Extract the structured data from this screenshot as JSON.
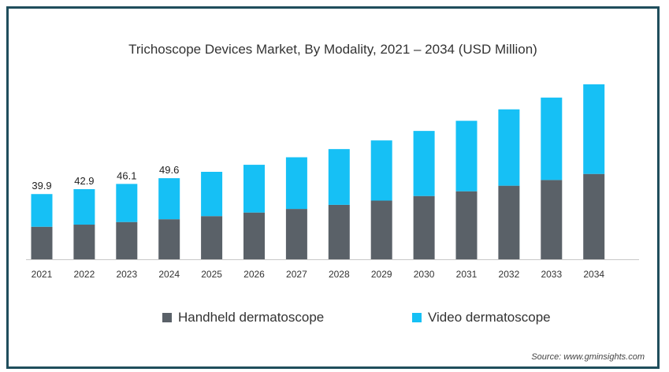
{
  "chart_data": {
    "type": "bar",
    "stacked": true,
    "title": "Trichoscope Devices Market, By Modality, 2021 – 2034 (USD Million)",
    "categories": [
      "2021",
      "2022",
      "2023",
      "2024",
      "2025",
      "2026",
      "2027",
      "2028",
      "2029",
      "2030",
      "2031",
      "2032",
      "2033",
      "2034"
    ],
    "series": [
      {
        "name": "Handheld dermatoscope",
        "color": "#5a6168",
        "values": [
          19.9,
          21.2,
          22.8,
          24.5,
          26.4,
          28.6,
          30.8,
          33.3,
          35.9,
          38.7,
          41.6,
          45.0,
          48.5,
          52.2
        ]
      },
      {
        "name": "Video dermatoscope",
        "color": "#16c0f5",
        "values": [
          20.0,
          21.7,
          23.3,
          25.1,
          27.1,
          29.2,
          31.6,
          34.1,
          36.8,
          39.8,
          43.1,
          46.7,
          50.4,
          54.8
        ]
      }
    ],
    "data_labels": [
      "39.9",
      "42.9",
      "46.1",
      "49.6"
    ],
    "ylim": [
      0,
      107
    ],
    "grid": false,
    "legend_position": "bottom"
  },
  "source": "Source: www.gminsights.com"
}
